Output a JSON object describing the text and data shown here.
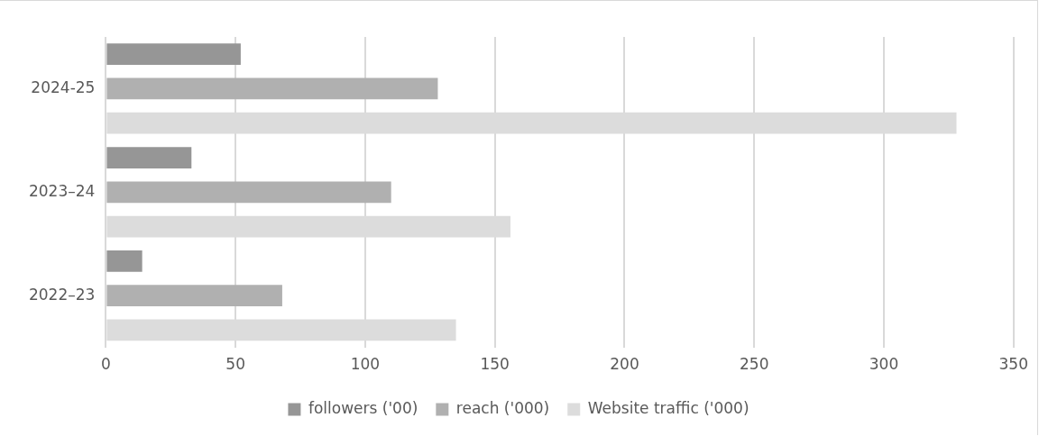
{
  "chart_data": {
    "type": "bar",
    "orientation": "horizontal",
    "categories": [
      "2024-25",
      "2023–24",
      "2022–23"
    ],
    "series": [
      {
        "name": "followers ('00)",
        "color": "#969696",
        "values": [
          52,
          33,
          14
        ]
      },
      {
        "name": "reach ('000)",
        "color": "#b0b0b0",
        "values": [
          128,
          110,
          68
        ]
      },
      {
        "name": "Website traffic ('000)",
        "color": "#dcdcdc",
        "values": [
          328,
          156,
          135
        ]
      }
    ],
    "xlim": [
      0,
      350
    ],
    "xticks": [
      0,
      50,
      100,
      150,
      200,
      250,
      300,
      350
    ],
    "grid": "x",
    "legend": "bottom"
  }
}
